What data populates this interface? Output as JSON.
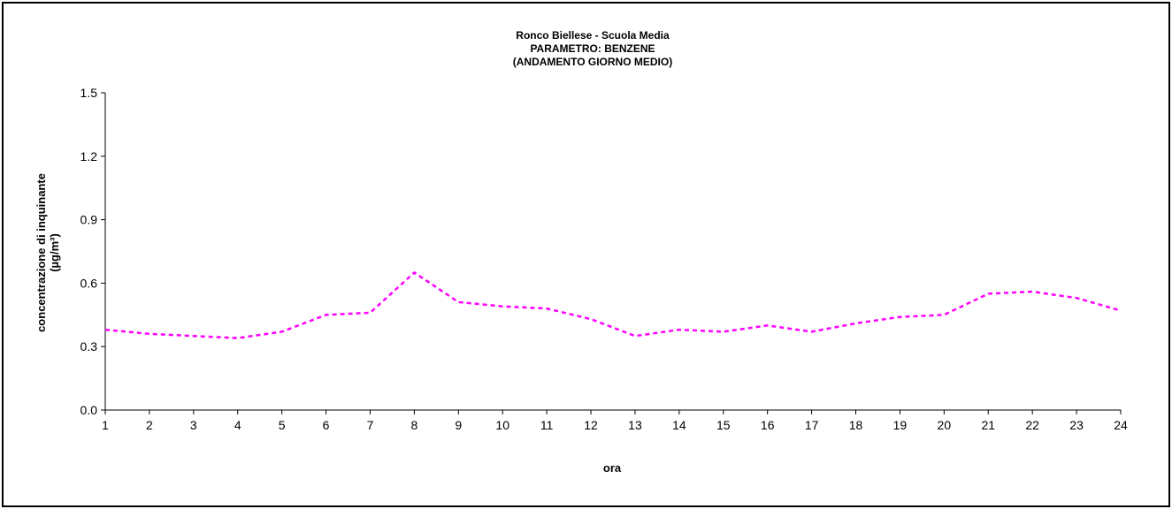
{
  "chart_data": {
    "type": "line",
    "title_lines": [
      "Ronco Biellese - Scuola Media",
      "PARAMETRO: BENZENE",
      "(ANDAMENTO GIORNO MEDIO)"
    ],
    "xlabel": "ora",
    "ylabel_lines": [
      "concentrazione di inquinante",
      "(µg/m³)"
    ],
    "x": [
      1,
      2,
      3,
      4,
      5,
      6,
      7,
      8,
      9,
      10,
      11,
      12,
      13,
      14,
      15,
      16,
      17,
      18,
      19,
      20,
      21,
      22,
      23,
      24
    ],
    "y_ticks": [
      "0.0",
      "0.3",
      "0.6",
      "0.9",
      "1.2",
      "1.5"
    ],
    "ylim": [
      0,
      1.5
    ],
    "grid": false,
    "series": [
      {
        "color": "#ff00ff",
        "values": [
          0.38,
          0.36,
          0.35,
          0.34,
          0.37,
          0.45,
          0.46,
          0.65,
          0.51,
          0.49,
          0.48,
          0.43,
          0.35,
          0.38,
          0.37,
          0.4,
          0.37,
          0.41,
          0.44,
          0.45,
          0.55,
          0.56,
          0.53,
          0.47
        ]
      }
    ]
  }
}
